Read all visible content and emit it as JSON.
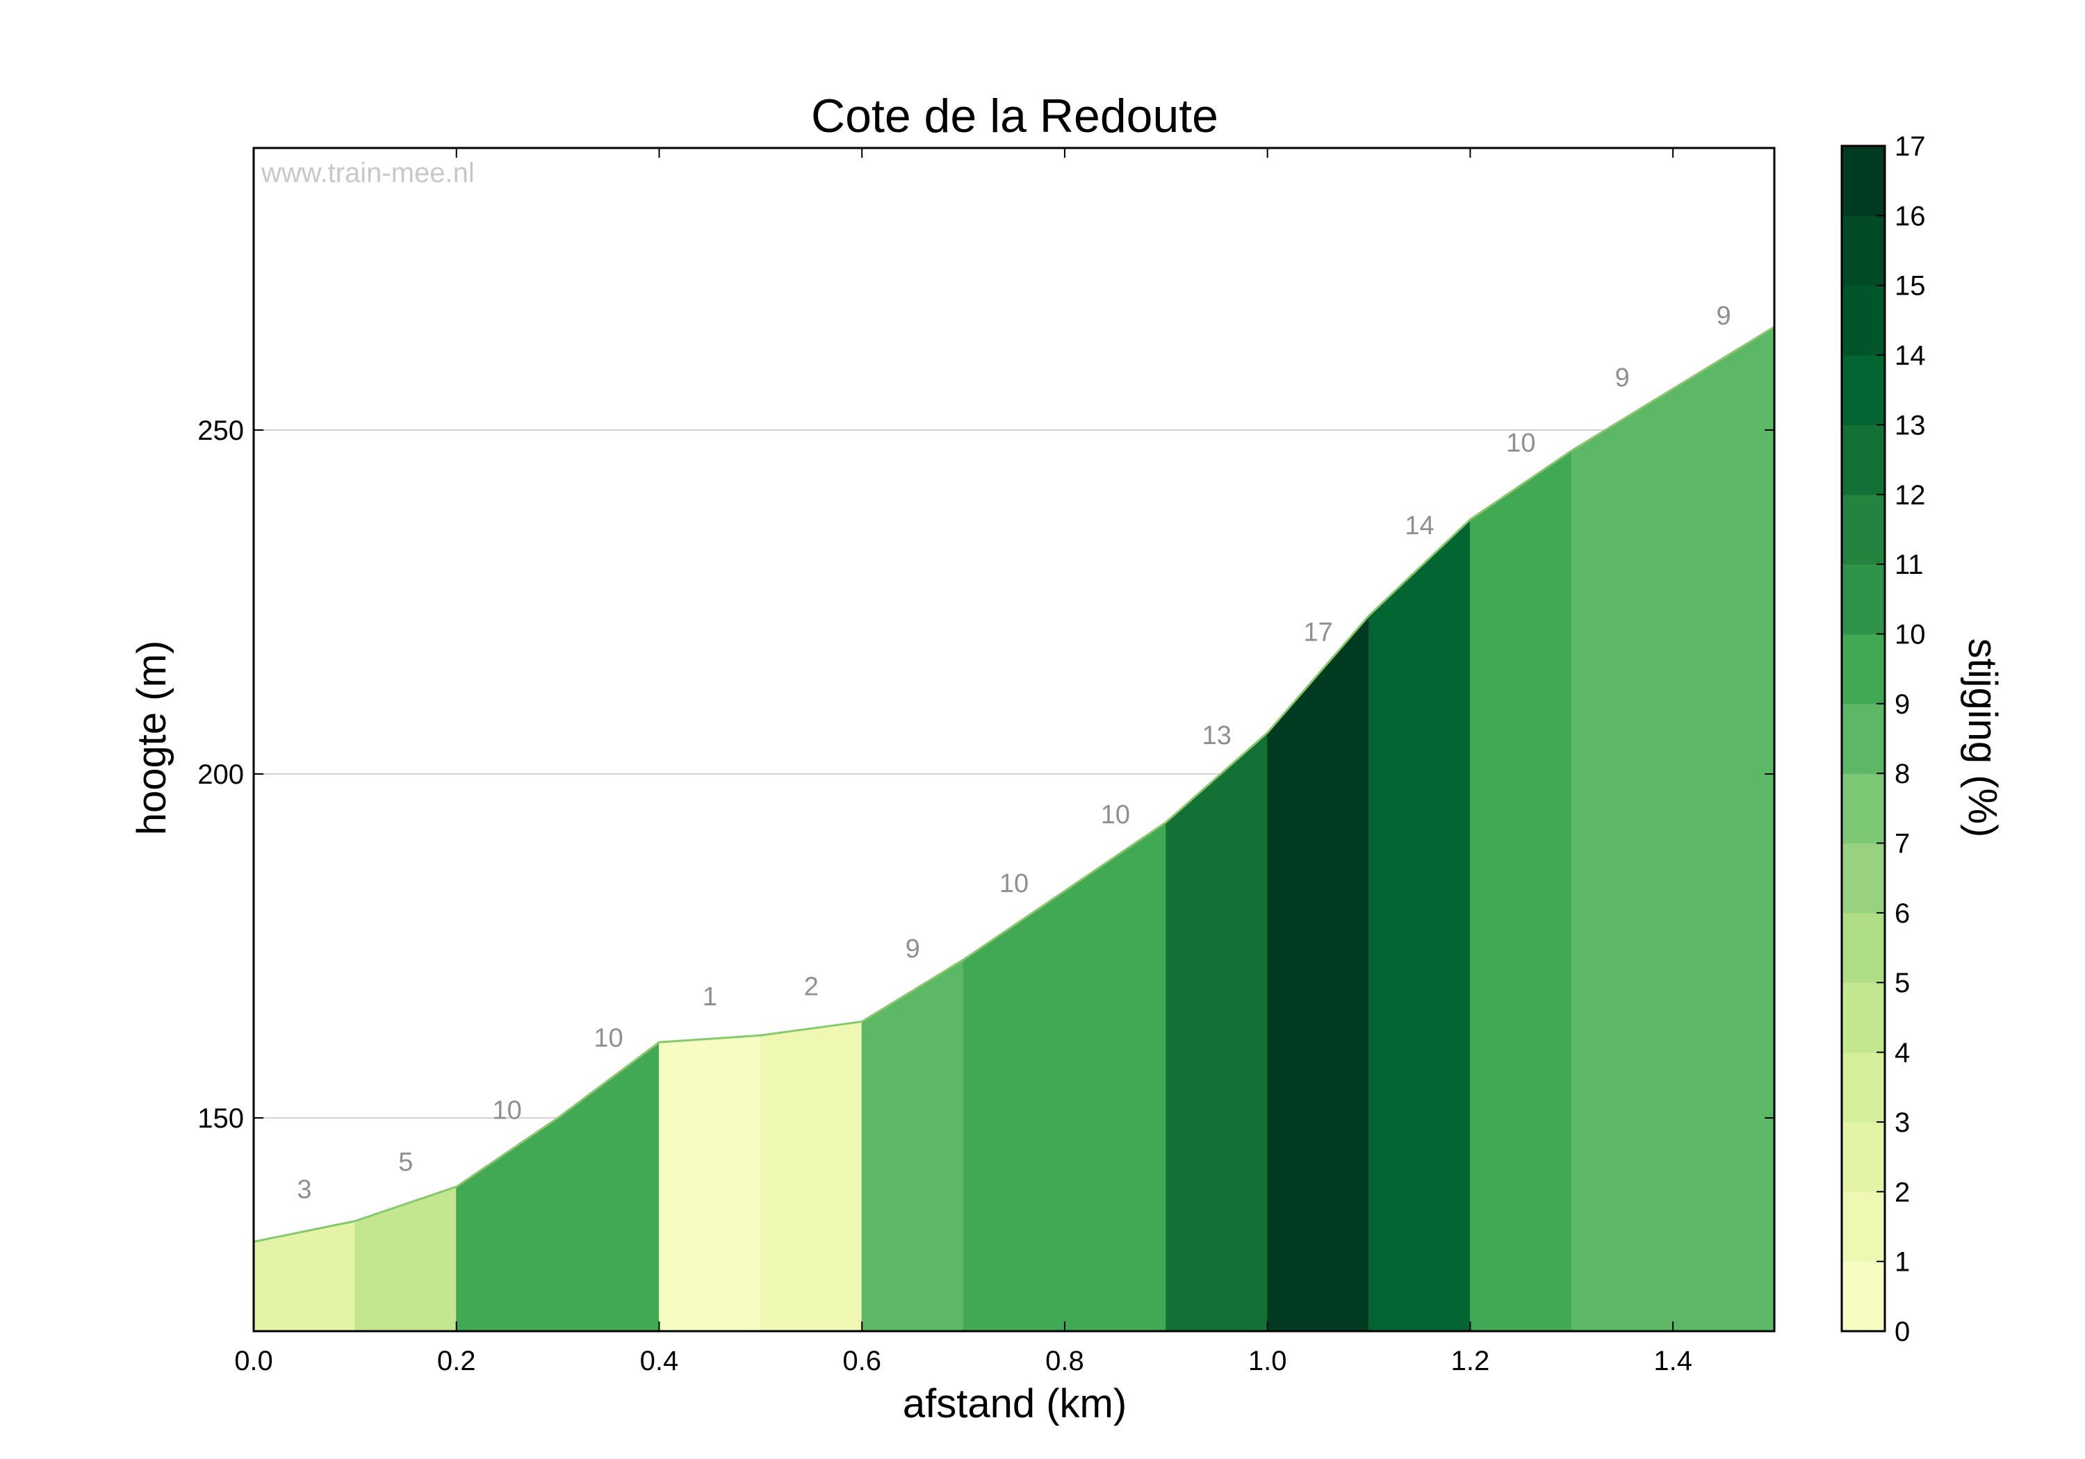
{
  "chart_data": {
    "type": "area",
    "title": "Cote de la Redoute",
    "watermark": "www.train-mee.nl",
    "xlabel": "afstand (km)",
    "ylabel": "hoogte (m)",
    "xlim": [
      0,
      1.5
    ],
    "ylim": [
      119,
      291
    ],
    "x_ticks": [
      0.0,
      0.2,
      0.4,
      0.6,
      0.8,
      1.0,
      1.2,
      1.4
    ],
    "x_tick_labels": [
      "0.0",
      "0.2",
      "0.4",
      "0.6",
      "0.8",
      "1.0",
      "1.2",
      "1.4"
    ],
    "y_ticks": [
      150,
      200,
      250
    ],
    "y_tick_labels": [
      "150",
      "200",
      "250"
    ],
    "grid": "horizontal",
    "x": [
      0.0,
      0.1,
      0.2,
      0.3,
      0.4,
      0.5,
      0.6,
      0.7,
      0.8,
      0.9,
      1.0,
      1.1,
      1.2,
      1.3,
      1.4,
      1.5
    ],
    "elevation": [
      132,
      135,
      140,
      150,
      161,
      162,
      164,
      173,
      183,
      193,
      206,
      223,
      237,
      247,
      256,
      265
    ],
    "gradient_labels": [
      "3",
      "5",
      "10",
      "10",
      "1",
      "2",
      "9",
      "10",
      "10",
      "13",
      "17",
      "14",
      "10",
      "9",
      "9"
    ],
    "gradient_values": [
      3,
      5,
      10,
      10,
      1,
      2,
      9,
      10,
      10,
      13,
      17,
      14,
      10,
      9,
      9
    ],
    "colorbar": {
      "label": "stijging (%)",
      "min": 0,
      "max": 17,
      "tick_labels": [
        "0",
        "1",
        "2",
        "3",
        "4",
        "5",
        "6",
        "7",
        "8",
        "9",
        "10",
        "11",
        "12",
        "13",
        "14",
        "15",
        "16",
        "17"
      ],
      "colors": [
        "#fffee5",
        "#f7fcc3",
        "#eef8b2",
        "#e4f4a6",
        "#d5ef9a",
        "#c4e68f",
        "#b0de86",
        "#97d37e",
        "#7dc875",
        "#5db865",
        "#41a953",
        "#2f9449",
        "#23833f",
        "#137136",
        "#036531",
        "#00562a",
        "#004a25",
        "#003a20"
      ]
    }
  }
}
